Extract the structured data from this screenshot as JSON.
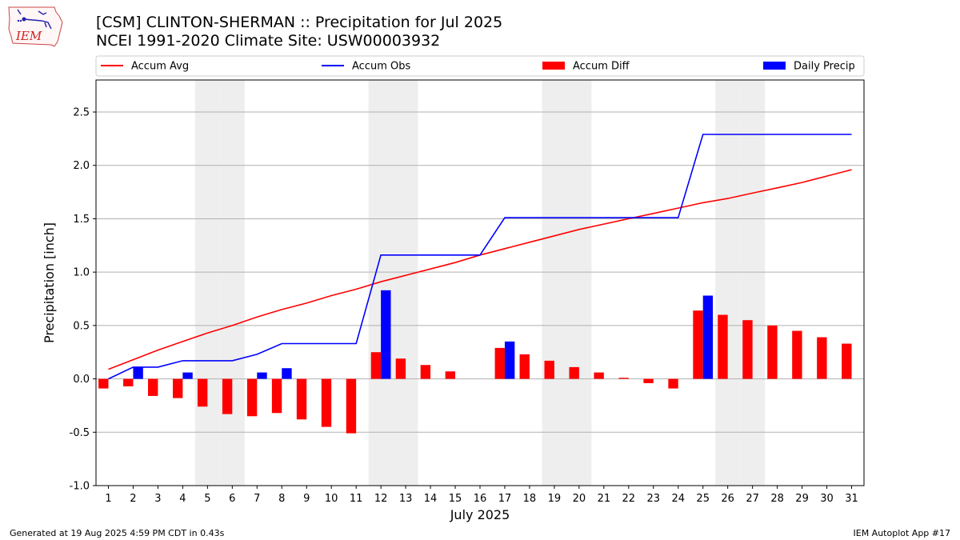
{
  "header": {
    "title_line1": "[CSM] CLINTON-SHERMAN :: Precipitation for Jul 2025",
    "title_line2": "NCEI 1991-2020 Climate Site: USW00003932"
  },
  "logo": {
    "text": "IEM",
    "icon": "iowa-state-outline-logo"
  },
  "footer": {
    "left": "Generated at 19 Aug 2025 4:59 PM CDT in 0.43s",
    "right": "IEM Autoplot App #17"
  },
  "chart_data": {
    "type": "bar",
    "xlabel": "July 2025",
    "ylabel": "Precipitation [inch]",
    "ylim": [
      -1.0,
      2.8
    ],
    "yticks": [
      "-1.0",
      "-0.5",
      "0.0",
      "0.5",
      "1.0",
      "1.5",
      "2.0",
      "2.5"
    ],
    "ytick_values": [
      -1.0,
      -0.5,
      0.0,
      0.5,
      1.0,
      1.5,
      2.0,
      2.5
    ],
    "xlim": [
      0.5,
      31.5
    ],
    "categories": [
      "1",
      "2",
      "3",
      "4",
      "5",
      "6",
      "7",
      "8",
      "9",
      "10",
      "11",
      "12",
      "13",
      "14",
      "15",
      "16",
      "17",
      "18",
      "19",
      "20",
      "21",
      "22",
      "23",
      "24",
      "25",
      "26",
      "27",
      "28",
      "29",
      "30",
      "31"
    ],
    "weekend_days": [
      5,
      6,
      12,
      13,
      19,
      20,
      26,
      27
    ],
    "grid": true,
    "legend_position": "top",
    "series": [
      {
        "name": "Accum Avg",
        "kind": "line",
        "color": "#ff0000",
        "values": [
          0.09,
          0.18,
          0.27,
          0.35,
          0.43,
          0.5,
          0.58,
          0.65,
          0.71,
          0.78,
          0.84,
          0.91,
          0.97,
          1.03,
          1.09,
          1.16,
          1.22,
          1.28,
          1.34,
          1.4,
          1.45,
          1.5,
          1.55,
          1.6,
          1.65,
          1.69,
          1.74,
          1.79,
          1.84,
          1.9,
          1.96
        ]
      },
      {
        "name": "Accum Obs",
        "kind": "line",
        "color": "#0000ff",
        "values": [
          0.0,
          0.11,
          0.11,
          0.17,
          0.17,
          0.17,
          0.23,
          0.33,
          0.33,
          0.33,
          0.33,
          1.16,
          1.16,
          1.16,
          1.16,
          1.16,
          1.51,
          1.51,
          1.51,
          1.51,
          1.51,
          1.51,
          1.51,
          1.51,
          2.29,
          2.29,
          2.29,
          2.29,
          2.29,
          2.29,
          2.29
        ]
      },
      {
        "name": "Accum Diff",
        "kind": "bar",
        "color": "#ff0000",
        "values": [
          -0.09,
          -0.07,
          -0.16,
          -0.18,
          -0.26,
          -0.33,
          -0.35,
          -0.32,
          -0.38,
          -0.45,
          -0.51,
          0.25,
          0.19,
          0.13,
          0.07,
          0.0,
          0.29,
          0.23,
          0.17,
          0.11,
          0.06,
          0.01,
          -0.04,
          -0.09,
          0.64,
          0.6,
          0.55,
          0.5,
          0.45,
          0.39,
          0.33
        ]
      },
      {
        "name": "Daily Precip",
        "kind": "bar",
        "color": "#0000ff",
        "values": [
          0,
          0.11,
          0,
          0.06,
          0,
          0,
          0.06,
          0.1,
          0,
          0,
          0,
          0.83,
          0,
          0,
          0,
          0,
          0.35,
          0,
          0,
          0,
          0,
          0,
          0,
          0,
          0.78,
          0,
          0,
          0,
          0,
          0,
          0
        ]
      }
    ]
  }
}
